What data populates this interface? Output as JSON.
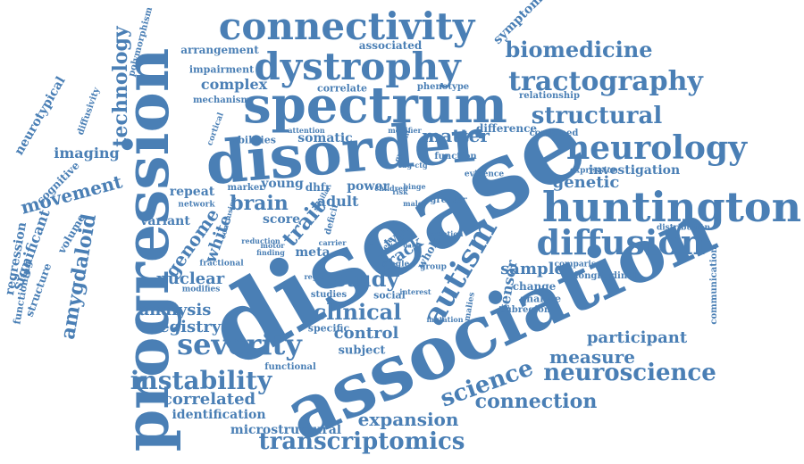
{
  "style": {
    "text_color": "#4a7fb5",
    "background": "#ffffff"
  },
  "words": [
    "disease",
    "association",
    "progression",
    "disorder",
    "spectrum",
    "connectivity",
    "dystrophy",
    "autism",
    "huntington",
    "diffusion",
    "neurology",
    "tractography",
    "biomedicine",
    "structural",
    "severity",
    "science",
    "instability",
    "transcriptomics",
    "neuroscience",
    "connection",
    "expansion",
    "clinical",
    "study",
    "trait",
    "matter",
    "brain",
    "technology",
    "amygdaloid",
    "movement",
    "imaging",
    "genome",
    "white",
    "nuclear",
    "analysis",
    "registry",
    "correlated",
    "identification",
    "microstructural",
    "measure",
    "participant",
    "control",
    "genetic",
    "investigation",
    "sample",
    "track",
    "tensor",
    "adult",
    "power",
    "variant",
    "repeat",
    "score",
    "somatic",
    "complex",
    "neurotypical",
    "regression",
    "significant",
    "volume",
    "structure",
    "functioning",
    "cognitive",
    "diffusivity",
    "polymorphism",
    "symptom",
    "associated",
    "arrangement",
    "impairment",
    "mechanism",
    "correlate",
    "phenotype",
    "relationship",
    "difference",
    "combined",
    "modifier",
    "quotient",
    "function",
    "evidence",
    "expression",
    "distribution",
    "comparison",
    "longitudinal",
    "change",
    "analyse",
    "subregion",
    "communication",
    "greater",
    "specific",
    "subject",
    "functional",
    "studies",
    "social",
    "region",
    "mutation",
    "anomalies",
    "motor",
    "fractional",
    "modifies",
    "network",
    "marker",
    "young",
    "abilities",
    "attention",
    "cortical",
    "type",
    "whole",
    "single",
    "group",
    "interest",
    "meta",
    "finding",
    "reduction",
    "conclusion",
    "deficit",
    "dhfr",
    "cag-ctg",
    "carrier",
    "allele",
    "similar",
    "emotion",
    "data",
    "life",
    "children",
    "male",
    "risk",
    "binge"
  ]
}
